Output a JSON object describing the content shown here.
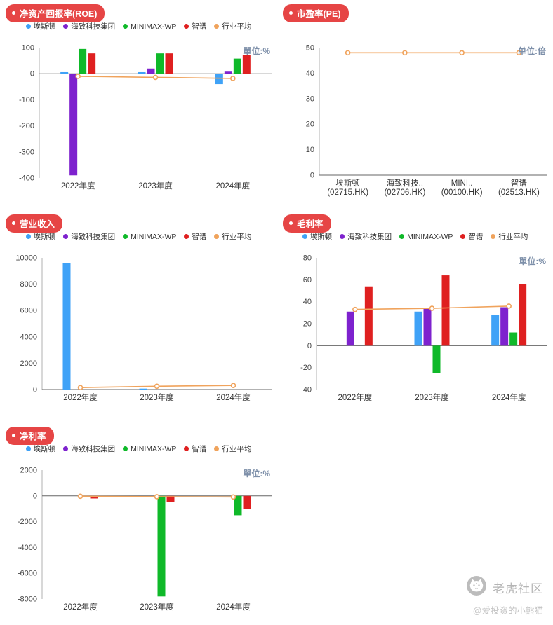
{
  "colors": {
    "badge_red": "#E64545",
    "unit_label": "#7D8FA9",
    "axis_line": "#b0b0b0",
    "zero_line": "#666666",
    "series_blue": "#3FA2F7",
    "series_purple": "#7E22CE",
    "series_green": "#0FB929",
    "series_red": "#DF2020",
    "series_orange": "#F0A35C"
  },
  "watermark": {
    "brand": "老虎社区",
    "handle": "@爱投资的小熊猫"
  },
  "chart_data": [
    {
      "id": "roe",
      "type": "bar",
      "title": "净资产回报率(ROE)",
      "unit": "單位:%",
      "grid": false,
      "legend_position": "top",
      "categories": [
        "2022年度",
        "2023年度",
        "2024年度"
      ],
      "ylim": [
        -400,
        100
      ],
      "yticks": [
        100,
        0,
        -100,
        -200,
        -300,
        -400
      ],
      "series": [
        {
          "name": "埃斯顿",
          "kind": "bar",
          "color": "#3FA2F7",
          "values": [
            6,
            6,
            -40
          ]
        },
        {
          "name": "海致科技集团",
          "kind": "bar",
          "color": "#7E22CE",
          "values": [
            -390,
            20,
            8
          ]
        },
        {
          "name": "MINIMAX-WP",
          "kind": "bar",
          "color": "#0FB929",
          "values": [
            95,
            78,
            58
          ]
        },
        {
          "name": "智谱",
          "kind": "bar",
          "color": "#DF2020",
          "values": [
            78,
            78,
            73
          ]
        },
        {
          "name": "行业平均",
          "kind": "line",
          "color": "#F0A35C",
          "values": [
            -10,
            -14,
            -18
          ]
        }
      ]
    },
    {
      "id": "pe",
      "type": "line",
      "title": "市盈率(PE)",
      "unit": "单位:倍",
      "grid": false,
      "show_legend": false,
      "categories": [
        [
          "埃斯顿",
          "(02715.HK)"
        ],
        [
          "海致科技..",
          "(02706.HK)"
        ],
        [
          "MINI..",
          "(00100.HK)"
        ],
        [
          "智谱",
          "(02513.HK)"
        ]
      ],
      "ylim": [
        0,
        50
      ],
      "yticks": [
        50,
        40,
        30,
        20,
        10,
        0
      ],
      "series": [
        {
          "name": "行业平均",
          "kind": "line",
          "color": "#F0A35C",
          "values": [
            48,
            48,
            48,
            48
          ]
        }
      ]
    },
    {
      "id": "revenue",
      "type": "bar",
      "title": "营业收入",
      "unit": "",
      "grid": false,
      "legend_position": "top",
      "categories": [
        "2022年度",
        "2023年度",
        "2024年度"
      ],
      "ylim": [
        0,
        10000
      ],
      "yticks": [
        10000,
        8000,
        6000,
        4000,
        2000,
        0
      ],
      "series": [
        {
          "name": "埃斯顿",
          "kind": "bar",
          "color": "#3FA2F7",
          "values": [
            9600,
            70,
            0
          ]
        },
        {
          "name": "海致科技集团",
          "kind": "bar",
          "color": "#7E22CE",
          "values": [
            0,
            0,
            0
          ]
        },
        {
          "name": "MINIMAX-WP",
          "kind": "bar",
          "color": "#0FB929",
          "values": [
            0,
            0,
            0
          ]
        },
        {
          "name": "智谱",
          "kind": "bar",
          "color": "#DF2020",
          "values": [
            0,
            0,
            0
          ]
        },
        {
          "name": "行业平均",
          "kind": "line",
          "color": "#F0A35C",
          "values": [
            150,
            250,
            310
          ]
        }
      ]
    },
    {
      "id": "gross-margin",
      "type": "bar",
      "title": "毛利率",
      "unit": "單位:%",
      "grid": false,
      "legend_position": "top",
      "categories": [
        "2022年度",
        "2023年度",
        "2024年度"
      ],
      "ylim": [
        -40,
        80
      ],
      "yticks": [
        80,
        60,
        40,
        20,
        0,
        -20,
        -40
      ],
      "series": [
        {
          "name": "埃斯顿",
          "kind": "bar",
          "color": "#3FA2F7",
          "values": [
            0,
            31,
            28
          ]
        },
        {
          "name": "海致科技集团",
          "kind": "bar",
          "color": "#7E22CE",
          "values": [
            31,
            34,
            35
          ]
        },
        {
          "name": "MINIMAX-WP",
          "kind": "bar",
          "color": "#0FB929",
          "values": [
            0,
            -25,
            12
          ]
        },
        {
          "name": "智谱",
          "kind": "bar",
          "color": "#DF2020",
          "values": [
            54,
            64,
            56
          ]
        },
        {
          "name": "行业平均",
          "kind": "line",
          "color": "#F0A35C",
          "values": [
            33,
            34,
            36
          ]
        }
      ]
    },
    {
      "id": "net-margin",
      "type": "bar",
      "title": "净利率",
      "unit": "單位:%",
      "grid": false,
      "legend_position": "top",
      "categories": [
        "2022年度",
        "2023年度",
        "2024年度"
      ],
      "ylim": [
        -8000,
        2000
      ],
      "yticks": [
        2000,
        0,
        -2000,
        -4000,
        -6000,
        -8000
      ],
      "series": [
        {
          "name": "埃斯顿",
          "kind": "bar",
          "color": "#3FA2F7",
          "values": [
            0,
            0,
            0
          ]
        },
        {
          "name": "海致科技集团",
          "kind": "bar",
          "color": "#7E22CE",
          "values": [
            0,
            0,
            0
          ]
        },
        {
          "name": "MINIMAX-WP",
          "kind": "bar",
          "color": "#0FB929",
          "values": [
            0,
            -7800,
            -1500
          ]
        },
        {
          "name": "智谱",
          "kind": "bar",
          "color": "#DF2020",
          "values": [
            -200,
            -500,
            -1000
          ]
        },
        {
          "name": "行业平均",
          "kind": "line",
          "color": "#F0A35C",
          "values": [
            -30,
            -60,
            -80
          ]
        }
      ]
    }
  ]
}
